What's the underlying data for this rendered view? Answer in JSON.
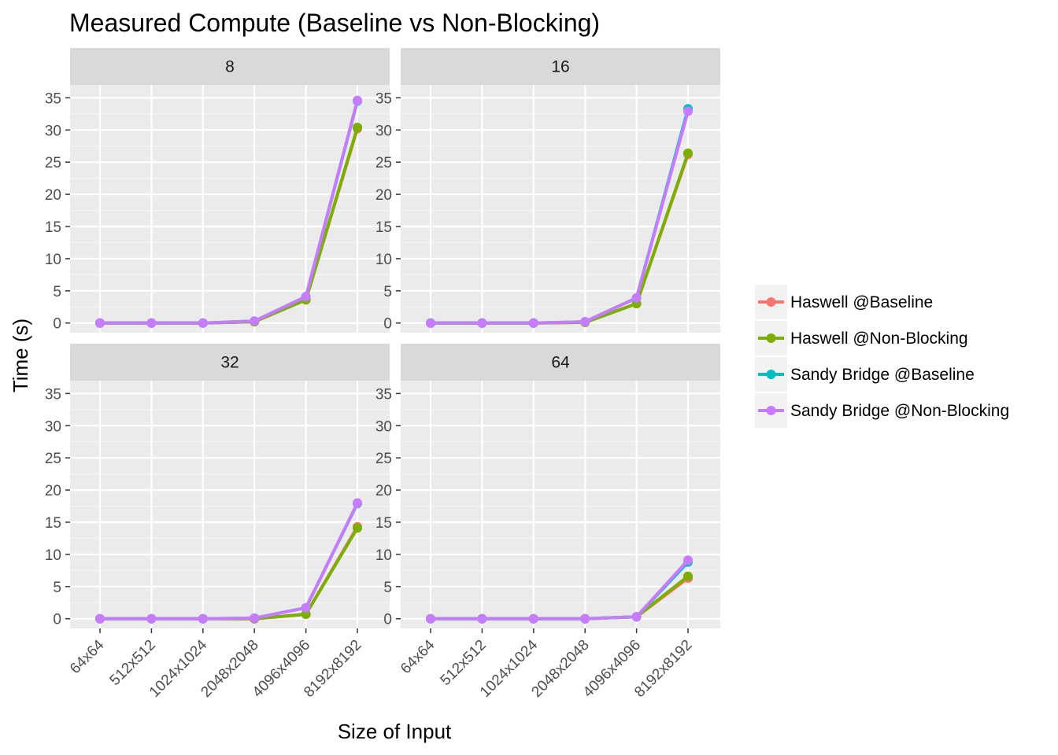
{
  "chart_data": {
    "type": "line",
    "title": "Measured Compute (Baseline vs Non-Blocking)",
    "xlabel": "Size of Input",
    "ylabel": "Time (s)",
    "ylim": [
      -1.5,
      37
    ],
    "y_ticks": [
      0,
      5,
      10,
      15,
      20,
      25,
      30,
      35
    ],
    "categories": [
      "64x64",
      "512x512",
      "1024x1024",
      "2048x2048",
      "4096x4096",
      "8192x8192"
    ],
    "legend_position": "right",
    "grid": true,
    "series_meta": [
      {
        "name": "Haswell @Baseline",
        "color": "#F8766D"
      },
      {
        "name": "Haswell @Non-Blocking",
        "color": "#7CAE00"
      },
      {
        "name": "Sandy Bridge @Baseline",
        "color": "#00BFC4"
      },
      {
        "name": "Sandy Bridge @Non-Blocking",
        "color": "#C77CFF"
      }
    ],
    "panels": [
      {
        "label": "8",
        "series": [
          {
            "name": "Haswell @Baseline",
            "values": [
              0,
              0,
              0,
              0.2,
              3.6,
              30.2
            ]
          },
          {
            "name": "Haswell @Non-Blocking",
            "values": [
              0,
              0,
              0,
              0.2,
              3.6,
              30.4
            ]
          },
          {
            "name": "Sandy Bridge @Baseline",
            "values": [
              0,
              0,
              0,
              0.3,
              4.1,
              34.5
            ]
          },
          {
            "name": "Sandy Bridge @Non-Blocking",
            "values": [
              0,
              0,
              0,
              0.3,
              4.1,
              34.6
            ]
          }
        ]
      },
      {
        "label": "16",
        "series": [
          {
            "name": "Haswell @Baseline",
            "values": [
              0,
              0,
              0,
              0.1,
              3.0,
              26.2
            ]
          },
          {
            "name": "Haswell @Non-Blocking",
            "values": [
              0,
              0,
              0,
              0.1,
              3.0,
              26.4
            ]
          },
          {
            "name": "Sandy Bridge @Baseline",
            "values": [
              0,
              0,
              0,
              0.2,
              3.9,
              33.3
            ]
          },
          {
            "name": "Sandy Bridge @Non-Blocking",
            "values": [
              0,
              0,
              0,
              0.2,
              3.9,
              32.9
            ]
          }
        ]
      },
      {
        "label": "32",
        "series": [
          {
            "name": "Haswell @Baseline",
            "values": [
              0,
              0,
              0,
              0,
              0.7,
              14.3
            ]
          },
          {
            "name": "Haswell @Non-Blocking",
            "values": [
              0,
              0,
              0,
              0,
              0.7,
              14.1
            ]
          },
          {
            "name": "Sandy Bridge @Baseline",
            "values": [
              0,
              0,
              0,
              0.1,
              1.7,
              17.9
            ]
          },
          {
            "name": "Sandy Bridge @Non-Blocking",
            "values": [
              0,
              0,
              0,
              0.1,
              1.7,
              18.0
            ]
          }
        ]
      },
      {
        "label": "64",
        "series": [
          {
            "name": "Haswell @Baseline",
            "values": [
              0,
              0,
              0,
              0,
              0.3,
              6.3
            ]
          },
          {
            "name": "Haswell @Non-Blocking",
            "values": [
              0,
              0,
              0,
              0,
              0.3,
              6.6
            ]
          },
          {
            "name": "Sandy Bridge @Baseline",
            "values": [
              0,
              0,
              0,
              0,
              0.3,
              8.8
            ]
          },
          {
            "name": "Sandy Bridge @Non-Blocking",
            "values": [
              0,
              0,
              0,
              0,
              0.3,
              9.1
            ]
          }
        ]
      }
    ]
  }
}
